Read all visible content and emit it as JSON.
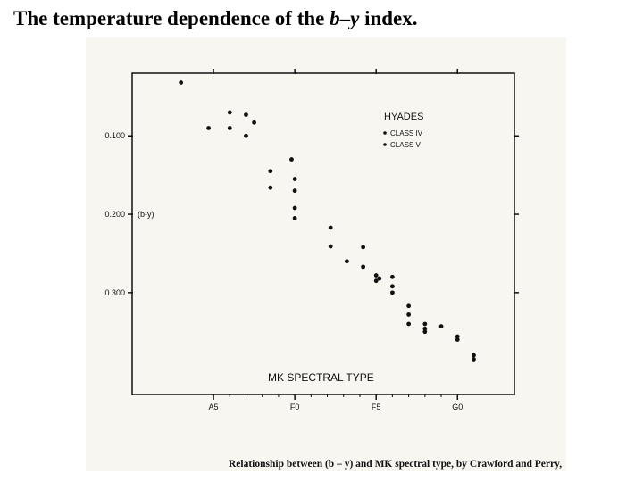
{
  "title": {
    "prefix": "The temperature dependence of the ",
    "index_b": "b",
    "dash": "–",
    "index_y": "y",
    "suffix": " index."
  },
  "caption": "Relationship between (b – y) and MK spectral type, by Crawford and Perry,",
  "chart_data": {
    "type": "scatter",
    "xlabel": "MK SPECTRAL TYPE",
    "ylabel": "(b-y)",
    "x_ticks": [
      "A5",
      "F0",
      "F5",
      "G0"
    ],
    "x_tick_values": [
      5,
      10,
      15,
      20
    ],
    "x_minor_ticks": [
      6,
      7,
      8,
      9,
      11,
      12,
      13,
      14,
      16,
      17,
      18,
      19
    ],
    "xlim": [
      0,
      23.5
    ],
    "y_ticks": [
      "0.100",
      "0.200",
      "0.300"
    ],
    "y_tick_values": [
      0.1,
      0.2,
      0.3
    ],
    "ylim": [
      0.02,
      0.43
    ],
    "y_inverted": true,
    "grid": false,
    "legend": {
      "title": "HYADES",
      "entries": [
        "CLASS IV",
        "CLASS V"
      ],
      "position": "top-right"
    },
    "series": [
      {
        "name": "CLASS IV",
        "points": [
          [
            3,
            0.032
          ],
          [
            6,
            0.07
          ],
          [
            7,
            0.073
          ],
          [
            4.7,
            0.09
          ],
          [
            6,
            0.09
          ],
          [
            7.5,
            0.083
          ],
          [
            7,
            0.1
          ],
          [
            8.5,
            0.145
          ],
          [
            9.8,
            0.13
          ],
          [
            8.5,
            0.166
          ],
          [
            10,
            0.155
          ],
          [
            10,
            0.17
          ],
          [
            10,
            0.192
          ],
          [
            10,
            0.205
          ]
        ]
      },
      {
        "name": "CLASS V",
        "points": [
          [
            12.2,
            0.217
          ],
          [
            12.2,
            0.241
          ],
          [
            13.2,
            0.26
          ],
          [
            14.2,
            0.242
          ],
          [
            14.2,
            0.267
          ],
          [
            15,
            0.278
          ],
          [
            15,
            0.285
          ],
          [
            15.2,
            0.282
          ],
          [
            16,
            0.28
          ],
          [
            16,
            0.292
          ],
          [
            16,
            0.3
          ],
          [
            17,
            0.317
          ],
          [
            17,
            0.328
          ],
          [
            17,
            0.34
          ],
          [
            18,
            0.34
          ],
          [
            18,
            0.346
          ],
          [
            18,
            0.35
          ],
          [
            19,
            0.343
          ],
          [
            20,
            0.356
          ],
          [
            20,
            0.36
          ],
          [
            21,
            0.38
          ],
          [
            21,
            0.385
          ]
        ]
      }
    ]
  }
}
